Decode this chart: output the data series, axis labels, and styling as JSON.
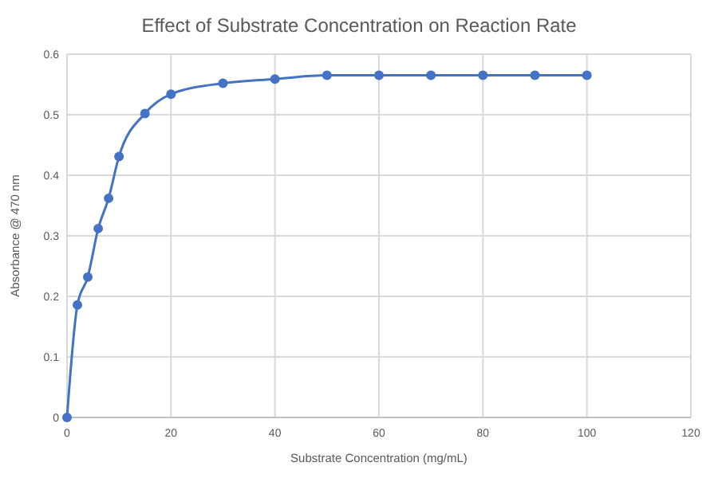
{
  "chart_data": {
    "type": "line",
    "title": "Effect of Substrate Concentration on Reaction Rate",
    "xlabel": "Substrate Concentration (mg/mL)",
    "ylabel": "Absorbance @ 470 nm",
    "x": [
      0,
      2,
      4,
      6,
      8,
      10,
      15,
      20,
      30,
      40,
      50,
      60,
      70,
      80,
      90,
      100
    ],
    "series": [
      {
        "color": "#4472c4",
        "values": [
          0,
          0.186,
          0.232,
          0.312,
          0.362,
          0.431,
          0.502,
          0.534,
          0.552,
          0.559,
          0.565,
          0.565,
          0.565,
          0.565,
          0.565,
          0.565
        ]
      }
    ],
    "xlim": [
      0,
      120
    ],
    "xticks": [
      0,
      20,
      40,
      60,
      80,
      100,
      120
    ],
    "ylim": [
      0,
      0.6
    ],
    "yticks": [
      0,
      0.1,
      0.2,
      0.3,
      0.4,
      0.5,
      0.6
    ],
    "grid": true,
    "marker": "circle",
    "line_style": "solid"
  }
}
